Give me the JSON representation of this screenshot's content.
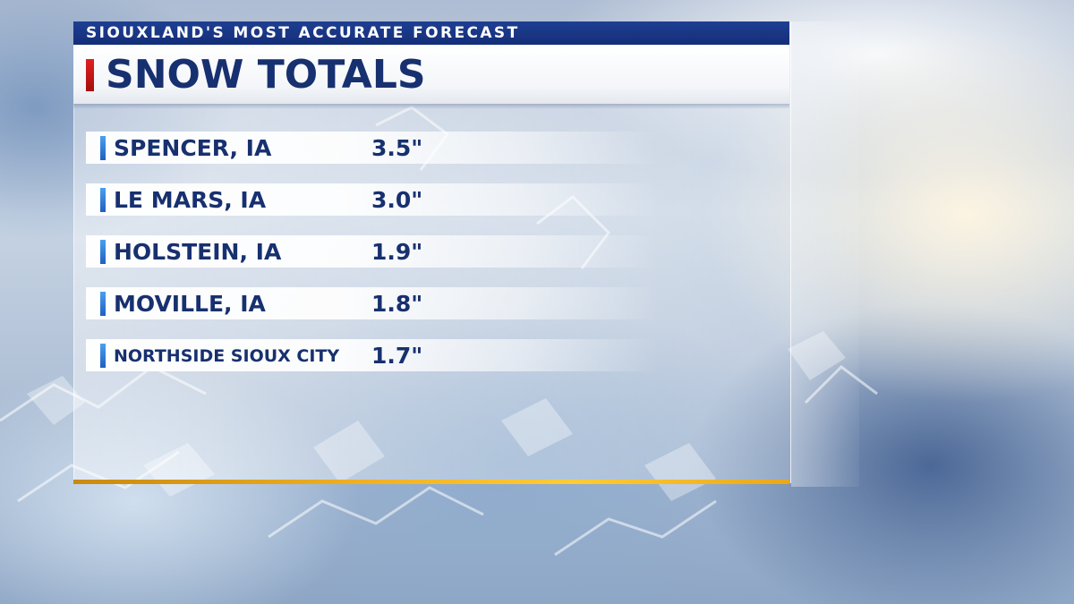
{
  "header": {
    "tagline": "SIOUXLAND'S MOST ACCURATE FORECAST",
    "title": "SNOW TOTALS"
  },
  "rows": [
    {
      "city": "SPENCER, IA",
      "amount": "3.5\""
    },
    {
      "city": "LE MARS, IA",
      "amount": "3.0\""
    },
    {
      "city": "HOLSTEIN, IA",
      "amount": "1.9\""
    },
    {
      "city": "MOVILLE, IA",
      "amount": "1.8\""
    },
    {
      "city": "NORTHSIDE SIOUX CITY",
      "amount": "1.7\""
    }
  ],
  "colors": {
    "brand_blue": "#17306f",
    "header_bar": "#1f3f93",
    "title_accent": "#d01818",
    "row_accent": "#3b88e0",
    "bottom_line": "#f0b020"
  }
}
